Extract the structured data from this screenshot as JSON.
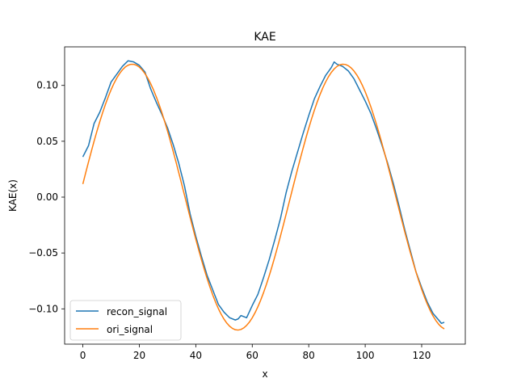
{
  "chart_data": {
    "type": "line",
    "title": "KAE",
    "xlabel": "x",
    "ylabel": "KAE(x)",
    "xlim": [
      -6.45,
      135.45
    ],
    "ylim": [
      -0.1316,
      0.1345
    ],
    "xticks": [
      0,
      20,
      40,
      60,
      80,
      100,
      120
    ],
    "xtick_labels": [
      "0",
      "20",
      "40",
      "60",
      "80",
      "100",
      "120"
    ],
    "yticks": [
      -0.1,
      -0.05,
      0.0,
      0.05,
      0.1
    ],
    "ytick_labels": [
      "−0.10",
      "−0.05",
      "0.00",
      "0.05",
      "0.10"
    ],
    "grid": false,
    "legend": {
      "placement": "lower-left"
    },
    "series": [
      {
        "name": "recon_signal",
        "color": "#1f77b4",
        "x": [
          0,
          2,
          4,
          6,
          8,
          10,
          12,
          14,
          16,
          18,
          20,
          22,
          24,
          26,
          28,
          30,
          32,
          34,
          36,
          38,
          40,
          42,
          44,
          46,
          48,
          50,
          52,
          54,
          55,
          56,
          58,
          60,
          62,
          64,
          66,
          68,
          70,
          72,
          74,
          76,
          78,
          80,
          82,
          84,
          86,
          88,
          89,
          90,
          92,
          94,
          96,
          98,
          100,
          102,
          104,
          106,
          108,
          110,
          112,
          114,
          116,
          118,
          120,
          122,
          124,
          126,
          127,
          128
        ],
        "y": [
          0.036,
          0.046,
          0.066,
          0.076,
          0.089,
          0.103,
          0.11,
          0.117,
          0.122,
          0.121,
          0.118,
          0.112,
          0.097,
          0.085,
          0.074,
          0.062,
          0.047,
          0.03,
          0.01,
          -0.015,
          -0.035,
          -0.053,
          -0.07,
          -0.083,
          -0.096,
          -0.103,
          -0.108,
          -0.11,
          -0.109,
          -0.106,
          -0.108,
          -0.097,
          -0.087,
          -0.072,
          -0.056,
          -0.038,
          -0.019,
          0.004,
          0.023,
          0.04,
          0.057,
          0.073,
          0.088,
          0.099,
          0.109,
          0.116,
          0.121,
          0.119,
          0.117,
          0.113,
          0.106,
          0.096,
          0.086,
          0.075,
          0.061,
          0.046,
          0.03,
          0.012,
          -0.008,
          -0.029,
          -0.048,
          -0.067,
          -0.081,
          -0.094,
          -0.104,
          -0.11,
          -0.113,
          -0.112
        ]
      },
      {
        "name": "ori_signal",
        "color": "#ff7f0e",
        "amplitude": 0.119,
        "period": 74.7,
        "peak_x": 17.5,
        "x_range": [
          0,
          128
        ],
        "step": 1
      }
    ]
  }
}
